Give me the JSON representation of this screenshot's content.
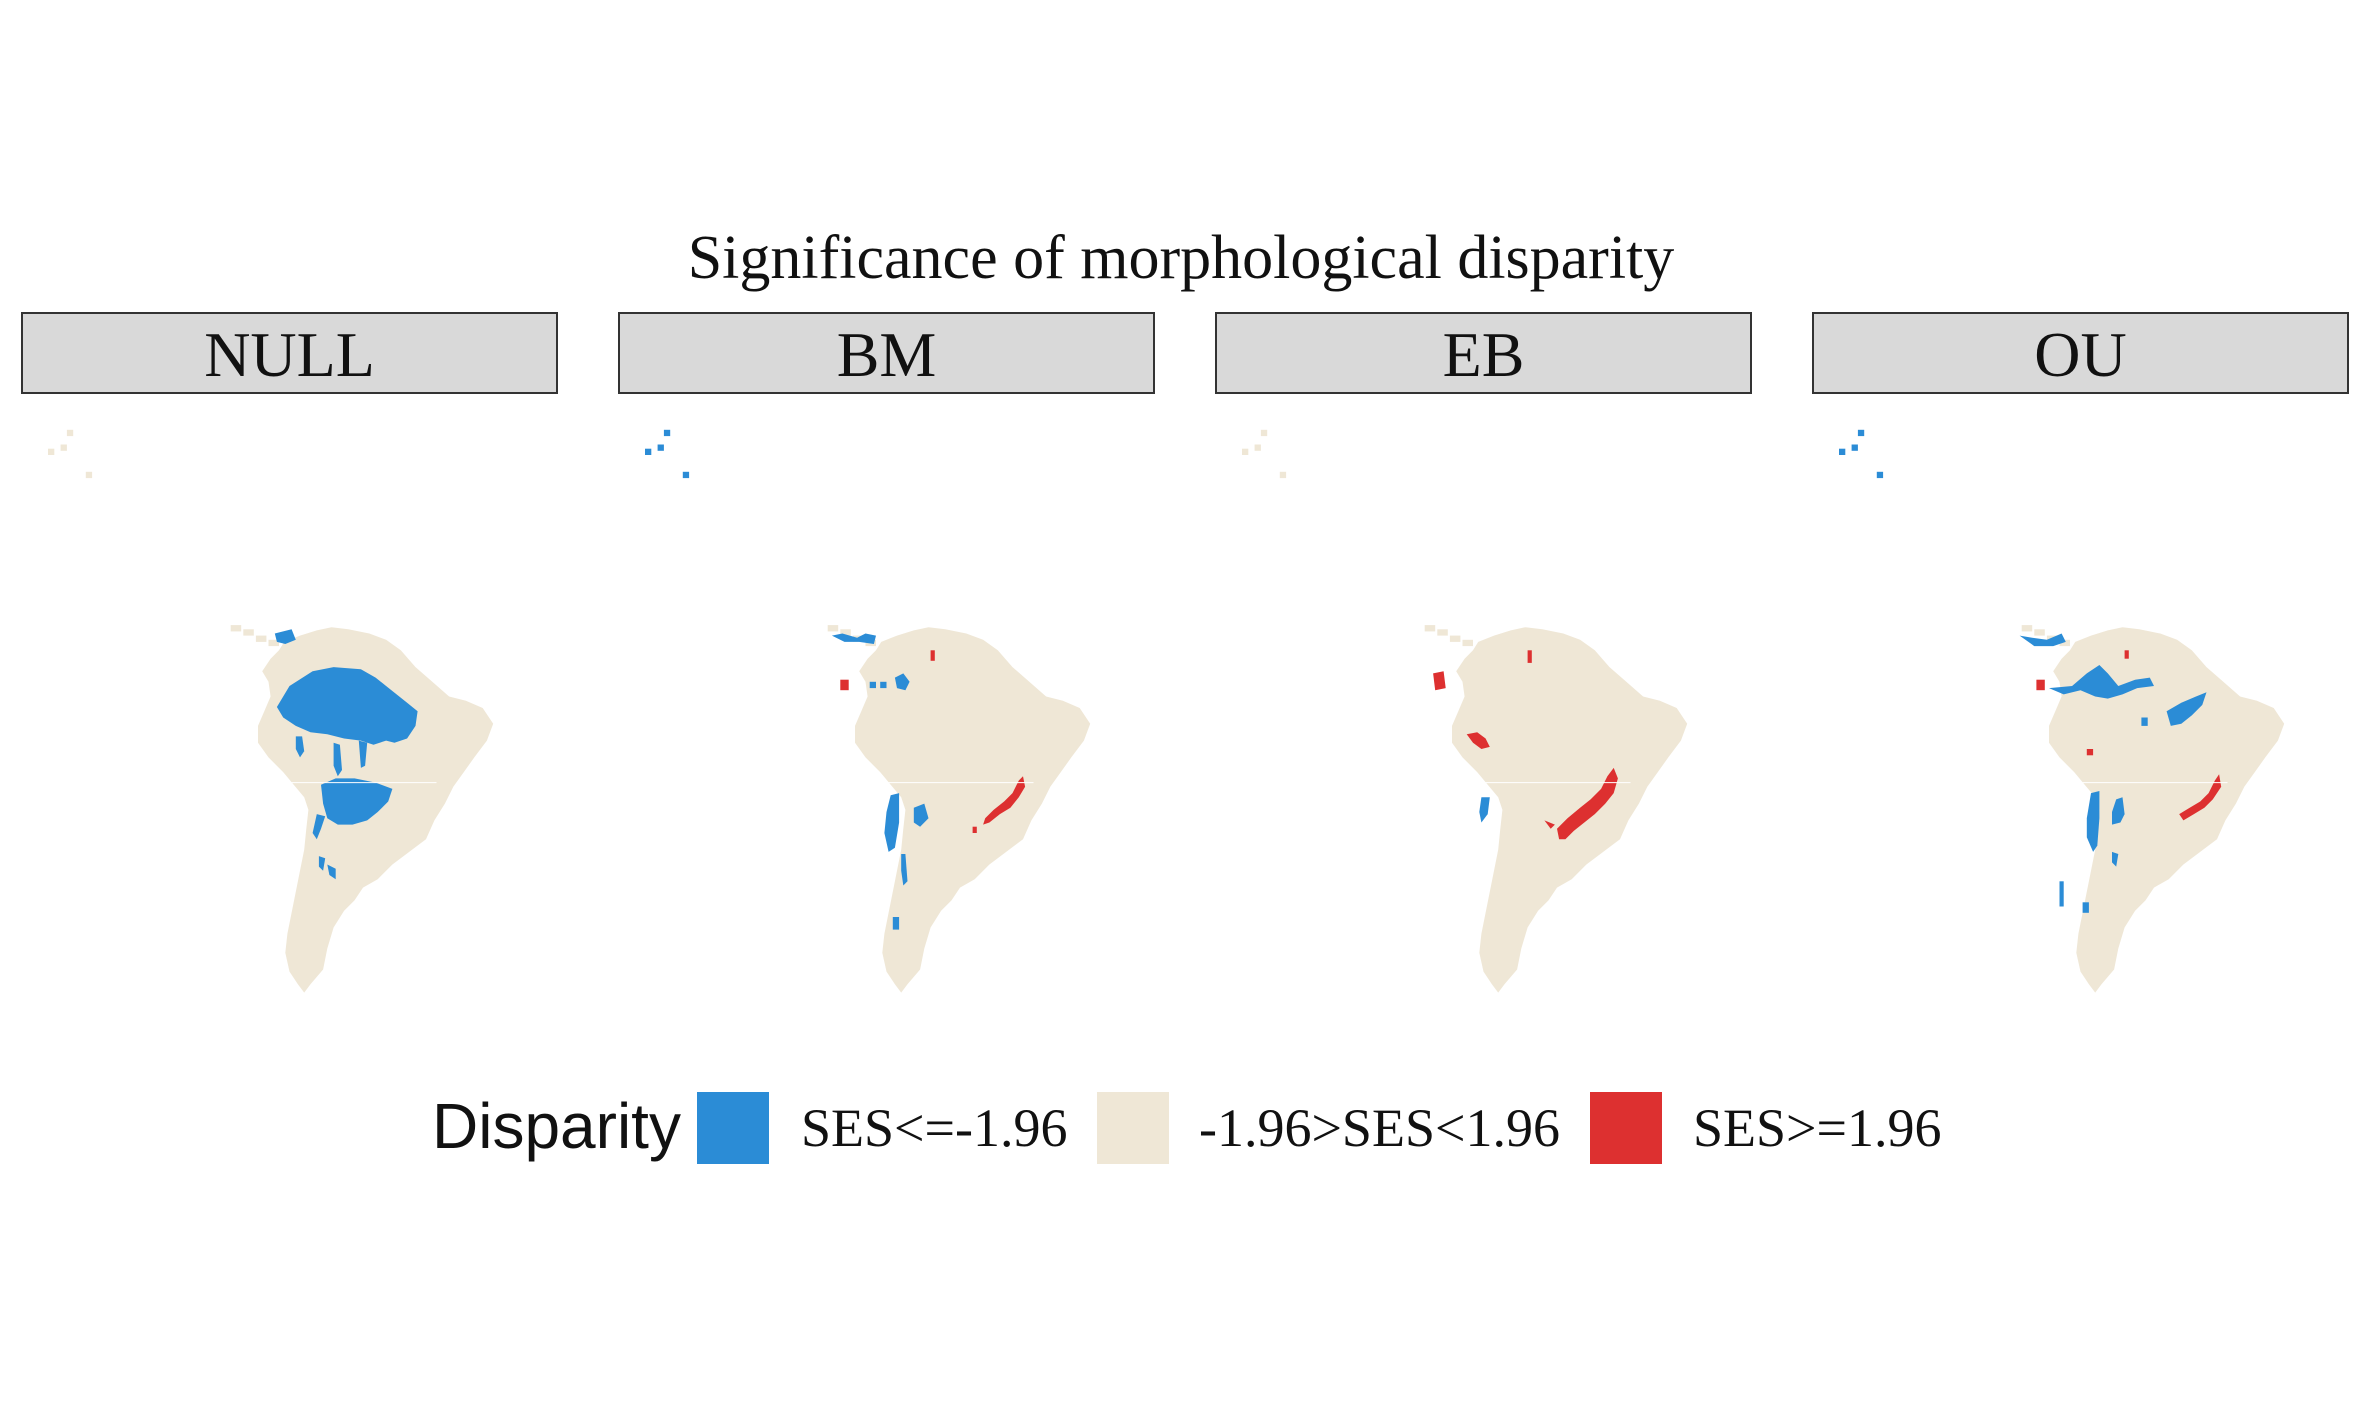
{
  "title": "Significance of morphological disparity",
  "colors": {
    "low": "#2b8cd6",
    "mid": "#efe7d6",
    "high": "#dd3030"
  },
  "panels": [
    {
      "label": "NULL"
    },
    {
      "label": "BM"
    },
    {
      "label": "EB"
    },
    {
      "label": "OU"
    }
  ],
  "legend": {
    "title": "Disparity",
    "items": [
      {
        "label": "SES<=-1.96",
        "color": "#2b8cd6"
      },
      {
        "label": "-1.96>SES<1.96",
        "color": "#efe7d6"
      },
      {
        "label": "SES>=1.96",
        "color": "#dd3030"
      }
    ]
  }
}
